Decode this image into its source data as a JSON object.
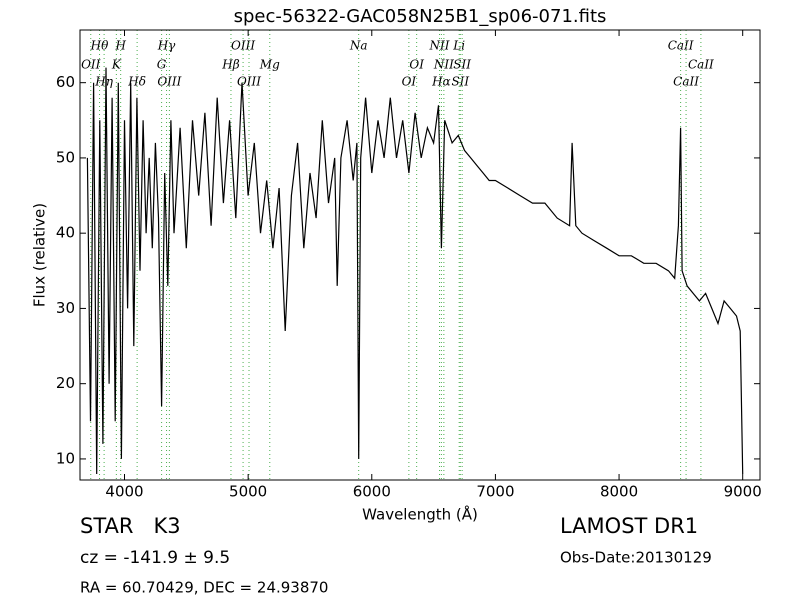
{
  "chart_data": {
    "type": "line",
    "title": "spec-56322-GAC058N25B1_sp06-071.fits",
    "xlabel": "Wavelength (Å)",
    "ylabel": "Flux (relative)",
    "xlim": [
      3640,
      9140
    ],
    "ylim": [
      7.2,
      67.0
    ],
    "xticks": [
      4000,
      5000,
      6000,
      7000,
      8000,
      9000
    ],
    "yticks": [
      10,
      20,
      30,
      40,
      50,
      60
    ],
    "color": "#000000",
    "line_color": "#4caf50",
    "x": [
      3700,
      3725,
      3750,
      3775,
      3800,
      3825,
      3850,
      3875,
      3900,
      3925,
      3950,
      3975,
      4000,
      4025,
      4050,
      4075,
      4100,
      4125,
      4150,
      4175,
      4200,
      4225,
      4250,
      4275,
      4300,
      4325,
      4350,
      4375,
      4400,
      4450,
      4500,
      4550,
      4600,
      4650,
      4700,
      4750,
      4800,
      4850,
      4900,
      4950,
      5000,
      5050,
      5100,
      5150,
      5200,
      5250,
      5300,
      5350,
      5400,
      5450,
      5500,
      5550,
      5600,
      5650,
      5700,
      5720,
      5750,
      5800,
      5850,
      5880,
      5894,
      5910,
      5950,
      6000,
      6050,
      6100,
      6150,
      6200,
      6250,
      6300,
      6350,
      6400,
      6450,
      6500,
      6540,
      6563,
      6590,
      6650,
      6700,
      6750,
      6800,
      6850,
      6900,
      6950,
      7000,
      7100,
      7200,
      7300,
      7400,
      7500,
      7600,
      7620,
      7650,
      7700,
      7800,
      7900,
      8000,
      8100,
      8200,
      8300,
      8400,
      8450,
      8480,
      8498,
      8510,
      8550,
      8600,
      8650,
      8700,
      8750,
      8800,
      8850,
      8900,
      8950,
      8980,
      9000
    ],
    "values": [
      50,
      15,
      60,
      8,
      55,
      12,
      62,
      20,
      58,
      15,
      60,
      10,
      55,
      30,
      60,
      25,
      58,
      35,
      55,
      40,
      50,
      38,
      52,
      42,
      17,
      48,
      33,
      55,
      40,
      54,
      38,
      55,
      45,
      56,
      41,
      58,
      44,
      55,
      42,
      60,
      45,
      52,
      40,
      47,
      38,
      46,
      27,
      45,
      52,
      38,
      48,
      42,
      55,
      44,
      50,
      33,
      50,
      55,
      47,
      52,
      10,
      50,
      58,
      48,
      55,
      50,
      58,
      50,
      55,
      48,
      56,
      50,
      54,
      52,
      57,
      38,
      55,
      52,
      53,
      51,
      50,
      49,
      48,
      47,
      47,
      46,
      45,
      44,
      44,
      42,
      41,
      52,
      41,
      40,
      39,
      38,
      37,
      37,
      36,
      36,
      35,
      34,
      41,
      54,
      35,
      33,
      32,
      31,
      32,
      30,
      28,
      31,
      30,
      29,
      27,
      8
    ],
    "annotations": [
      {
        "label": "OII",
        "wavelength": 3727
      },
      {
        "label": "Hθ",
        "wavelength": 3798
      },
      {
        "label": "Hη",
        "wavelength": 3835
      },
      {
        "label": "K",
        "wavelength": 3934
      },
      {
        "label": "H",
        "wavelength": 3969
      },
      {
        "label": "Hδ",
        "wavelength": 4102
      },
      {
        "label": "G",
        "wavelength": 4300
      },
      {
        "label": "Hγ",
        "wavelength": 4340
      },
      {
        "label": "OIII",
        "wavelength": 4363
      },
      {
        "label": "Hβ",
        "wavelength": 4861
      },
      {
        "label": "OIII",
        "wavelength": 4959
      },
      {
        "label": "OIII",
        "wavelength": 5007
      },
      {
        "label": "Mg",
        "wavelength": 5175
      },
      {
        "label": "Na",
        "wavelength": 5894
      },
      {
        "label": "OI",
        "wavelength": 6300
      },
      {
        "label": "OI",
        "wavelength": 6363
      },
      {
        "label": "NII",
        "wavelength": 6548
      },
      {
        "label": "Hα",
        "wavelength": 6563
      },
      {
        "label": "NII",
        "wavelength": 6583
      },
      {
        "label": "Li",
        "wavelength": 6707
      },
      {
        "label": "SII",
        "wavelength": 6716
      },
      {
        "label": "SII",
        "wavelength": 6731
      },
      {
        "label": "CaII",
        "wavelength": 8498
      },
      {
        "label": "CaII",
        "wavelength": 8542
      },
      {
        "label": "CaII",
        "wavelength": 8662
      }
    ]
  },
  "info": {
    "class": "STAR   K3",
    "cz": "cz = -141.9 ± 9.5",
    "coords": "RA = 60.70429, DEC = 24.93870",
    "survey": "LAMOST DR1",
    "date": "Obs-Date:20130129"
  }
}
